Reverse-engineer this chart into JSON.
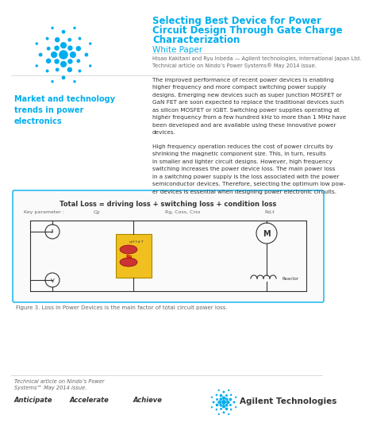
{
  "bg_color": "#ffffff",
  "title_line1": "Selecting Best Device for Power",
  "title_line2": "Circuit Design Through Gate Charge",
  "title_line3": "Characterization",
  "title_color": "#00aeef",
  "subtitle": "White Paper",
  "subtitle_color": "#00aeef",
  "author_line1": "Hisao Kakitani and Ryu Inbeda — Agilent technologies, international Japan Ltd.",
  "author_line2": "Technical article on Nindo’s Power Systems® May 2014 issue.",
  "author_color": "#666666",
  "sidebar_title": "Market and technology\ntrends in power\nelectronics",
  "sidebar_color": "#00aeef",
  "body_text1_lines": [
    "The improved performance of recent power devices is enabling",
    "higher frequency and more compact switching power supply",
    "designs. Emerging new devices such as super junction MOSFET or",
    "GaN FET are soon expected to replace the traditional devices such",
    "as silicon MOSFET or IGBT. Switching power supplies operating at",
    "higher frequency from a few hundred kHz to more than 1 MHz have",
    "been developed and are available using these innovative power",
    "devices."
  ],
  "body_text2_lines": [
    "High frequency operation reduces the cost of power circuits by",
    "shrinking the magnetic component size. This, in turn, results",
    "in smaller and lighter circuit designs. However, high frequency",
    "switching increases the power device loss. The main power loss",
    "in a switching power supply is the loss associated with the power",
    "semiconductor devices. Therefore, selecting the optimum low pow-",
    "er devices is essential when designing power electronic circuits."
  ],
  "body_color": "#333333",
  "eq_bold": "Total Loss = driving loss + switching loss + condition loss",
  "param_label": "Key parameter :",
  "param_cg": "Cg",
  "param_rg": "Rg, Coss, Crss",
  "param_rd": "Rd,t",
  "fig_caption": "Figure 3. Loss in Power Devices is the main factor of total circuit power loss.",
  "footer_left": "Technical article on Nindo’s Power\nSystems™ May 2014 issue.",
  "footer_italic_color": "#666666",
  "footer_tag1": "Anticipate",
  "footer_tag2": "Accelerate",
  "footer_tag3": "Achieve",
  "agilent_text": "Agilent Technologies",
  "cyan": "#00aeef",
  "dark": "#333333",
  "gray": "#666666",
  "light_gray": "#cccccc",
  "box_border": "#00aeef",
  "yellow": "#f0c020",
  "red_comp": "#cc3333"
}
